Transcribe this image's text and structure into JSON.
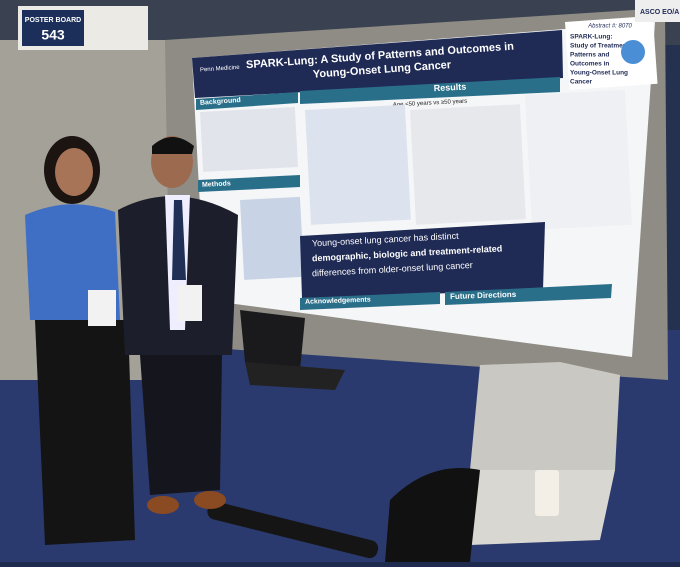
{
  "sign": {
    "label": "POSTER BOARD",
    "number": "543"
  },
  "poster": {
    "institution": "Penn Medicine",
    "title": [
      "SPARK-Lung: A Study of Patterns and Outcomes in",
      "Young-Onset Lung Cancer"
    ],
    "sections": {
      "background": "Background",
      "methods": "Methods",
      "results": "Results",
      "acknowledgements": "Acknowledgements",
      "future": "Future Directions"
    },
    "comparison": "Age <50 years vs ≥50 years",
    "key_finding": [
      "Young-onset lung cancer has distinct",
      "demographic, biologic and treatment-related",
      "differences from older-onset lung cancer"
    ],
    "abstract": {
      "number": "Abstract #: 8070",
      "title": [
        "SPARK-Lung:",
        "Study of Treatment",
        "Patterns and",
        "Outcomes in",
        "Young-Onset Lung",
        "Cancer"
      ]
    }
  },
  "corner_sign": "ASCO EO/A"
}
